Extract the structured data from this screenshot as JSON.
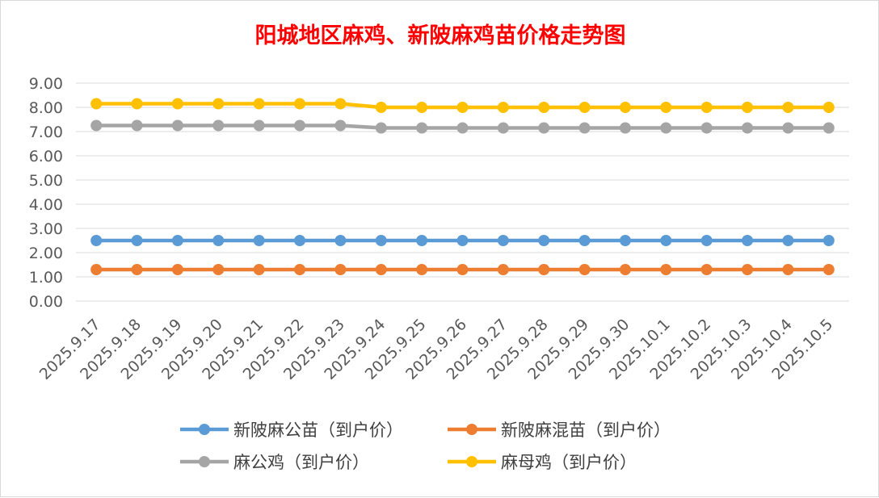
{
  "chart_data": {
    "type": "line",
    "title": "阳城地区麻鸡、新陂麻鸡苗价格走势图",
    "xlabel": "",
    "ylabel": "",
    "ylim": [
      0,
      9
    ],
    "yticks": [
      "0.00",
      "1.00",
      "2.00",
      "3.00",
      "4.00",
      "5.00",
      "6.00",
      "7.00",
      "8.00",
      "9.00"
    ],
    "grid": true,
    "legend_position": "bottom",
    "categories": [
      "2025.9.17",
      "2025.9.18",
      "2025.9.19",
      "2025.9.20",
      "2025.9.21",
      "2025.9.22",
      "2025.9.23",
      "2025.9.24",
      "2025.9.25",
      "2025.9.26",
      "2025.9.27",
      "2025.9.28",
      "2025.9.29",
      "2025.9.30",
      "2025.10.1",
      "2025.10.2",
      "2025.10.3",
      "2025.10.4",
      "2025.10.5"
    ],
    "series": [
      {
        "name": "新陂麻公苗（到户价）",
        "color": "#5b9bd5",
        "values": [
          2.5,
          2.5,
          2.5,
          2.5,
          2.5,
          2.5,
          2.5,
          2.5,
          2.5,
          2.5,
          2.5,
          2.5,
          2.5,
          2.5,
          2.5,
          2.5,
          2.5,
          2.5,
          2.5
        ]
      },
      {
        "name": "新陂麻混苗（到户价）",
        "color": "#ed7d31",
        "values": [
          1.3,
          1.3,
          1.3,
          1.3,
          1.3,
          1.3,
          1.3,
          1.3,
          1.3,
          1.3,
          1.3,
          1.3,
          1.3,
          1.3,
          1.3,
          1.3,
          1.3,
          1.3,
          1.3
        ]
      },
      {
        "name": "麻公鸡（到户价）",
        "color": "#a5a5a5",
        "values": [
          7.25,
          7.25,
          7.25,
          7.25,
          7.25,
          7.25,
          7.25,
          7.15,
          7.15,
          7.15,
          7.15,
          7.15,
          7.15,
          7.15,
          7.15,
          7.15,
          7.15,
          7.15,
          7.15
        ]
      },
      {
        "name": "麻母鸡（到户价）",
        "color": "#ffc000",
        "values": [
          8.15,
          8.15,
          8.15,
          8.15,
          8.15,
          8.15,
          8.15,
          8.0,
          8.0,
          8.0,
          8.0,
          8.0,
          8.0,
          8.0,
          8.0,
          8.0,
          8.0,
          8.0,
          8.0
        ]
      }
    ]
  }
}
